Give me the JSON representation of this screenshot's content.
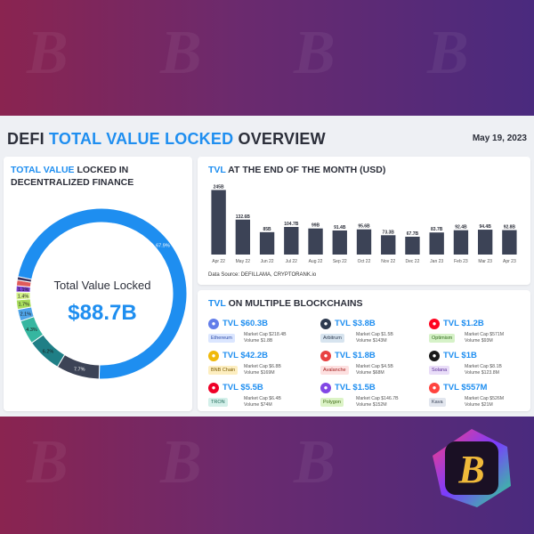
{
  "header": {
    "title_part1": "DEFI ",
    "title_part2": "TOTAL VALUE LOCKED",
    "title_part3": " OVERVIEW",
    "date": "May 19, 2023"
  },
  "left_panel": {
    "title_blue": "TOTAL VALUE",
    "title_rest": " LOCKED IN",
    "title_line2": "DECENTRALIZED FINANCE",
    "center_label": "Total Value Locked",
    "center_value": "$88.7B"
  },
  "top_panel": {
    "title_blue": "TVL",
    "title_rest": " AT THE END OF THE MONTH (USD)",
    "source": "Data Source: DEFILLAMA, CRYPTORANK.io"
  },
  "bottom_panel": {
    "title_blue": "TVL",
    "title_rest": " ON MULTIPLE BLOCKCHAINS",
    "chains": [
      {
        "tvl": "TVL $60.3B",
        "name": "Ethereum",
        "mcap": "Market Cap $218.4B",
        "vol": "Volume $1.8B",
        "color": "#627eea",
        "badge_bg": "#dbe6ff",
        "badge_fg": "#2b4aa8"
      },
      {
        "tvl": "TVL $3.8B",
        "name": "Arbitrum",
        "mcap": "Market Cap $1.5B",
        "vol": "Volume $143M",
        "color": "#2d3a4f",
        "badge_bg": "#d7e4ef",
        "badge_fg": "#2d3a4f"
      },
      {
        "tvl": "TVL $1.2B",
        "name": "Optimism",
        "mcap": "Market Cap $571M",
        "vol": "Volume $93M",
        "color": "#ff0420",
        "badge_bg": "#d6f2c8",
        "badge_fg": "#2f6b1a"
      },
      {
        "tvl": "TVL $42.2B",
        "name": "BNB Chain",
        "mcap": "Market Cap $6.8B",
        "vol": "Volume $169M",
        "color": "#f0b90b",
        "badge_bg": "#fdeec0",
        "badge_fg": "#7a5a00"
      },
      {
        "tvl": "TVL $1.8B",
        "name": "Avalanche",
        "mcap": "Market Cap $4.5B",
        "vol": "Volume $68M",
        "color": "#e84142",
        "badge_bg": "#fde0e0",
        "badge_fg": "#a42020"
      },
      {
        "tvl": "TVL $1B",
        "name": "Solana",
        "mcap": "Market Cap $8.1B",
        "vol": "Volume $123.8M",
        "color": "#1a1a1a",
        "badge_bg": "#e9ddf8",
        "badge_fg": "#5b2d9a"
      },
      {
        "tvl": "TVL $5.5B",
        "name": "TRON",
        "mcap": "Market Cap $6.4B",
        "vol": "Volume $74M",
        "color": "#ef0027",
        "badge_bg": "#d4f0ea",
        "badge_fg": "#1f6a5a"
      },
      {
        "tvl": "TVL $1.5B",
        "name": "Polygon",
        "mcap": "Market Cap $146.7B",
        "vol": "Volume $152M",
        "color": "#8247e5",
        "badge_bg": "#dcf3c6",
        "badge_fg": "#3d6a14"
      },
      {
        "tvl": "TVL $557M",
        "name": "Kava",
        "mcap": "Market Cap $526M",
        "vol": "Volume $21M",
        "color": "#ff433e",
        "badge_bg": "#e2e6ee",
        "badge_fg": "#3a4458"
      }
    ]
  },
  "chart_data": [
    {
      "type": "pie",
      "title": "TOTAL VALUE LOCKED IN DECENTRALIZED FINANCE",
      "labels": [
        "67.9%",
        "7.7%",
        "6.2%",
        "4.3%",
        "2.1%",
        "1.7%",
        "1.4%",
        "1.1%",
        "",
        ""
      ],
      "values": [
        67.9,
        7.7,
        6.2,
        4.3,
        2.1,
        1.7,
        1.4,
        1.1,
        1.0,
        0.6
      ],
      "colors": [
        "#1e8ef0",
        "#3c4356",
        "#1f7f86",
        "#36b6a0",
        "#4fa4e8",
        "#a8dd5c",
        "#d4f28a",
        "#7a3fd0",
        "#e05a5a",
        "#3a2f5a"
      ]
    },
    {
      "type": "bar",
      "title": "TVL AT THE END OF THE MONTH (USD)",
      "categories": [
        "Apr 22",
        "May 22",
        "Jun 22",
        "Jul 22",
        "Aug 22",
        "Sep 22",
        "Oct 22",
        "Nov 22",
        "Dec 22",
        "Jan 23",
        "Feb 23",
        "Mar 23",
        "Apr 23"
      ],
      "values": [
        245,
        132.6,
        85,
        104.7,
        99,
        91.4,
        95.6,
        73.3,
        67.7,
        83.7,
        92.4,
        94.4,
        92.8
      ],
      "data_labels": [
        "245B",
        "132.6B",
        "85B",
        "104.7B",
        "99B",
        "91.4B",
        "95.6B",
        "73.3B",
        "67.7B",
        "83.7B",
        "92.4B",
        "94.4B",
        "92.8B"
      ],
      "ylim": [
        0,
        250
      ],
      "color": "#3c4356"
    }
  ]
}
